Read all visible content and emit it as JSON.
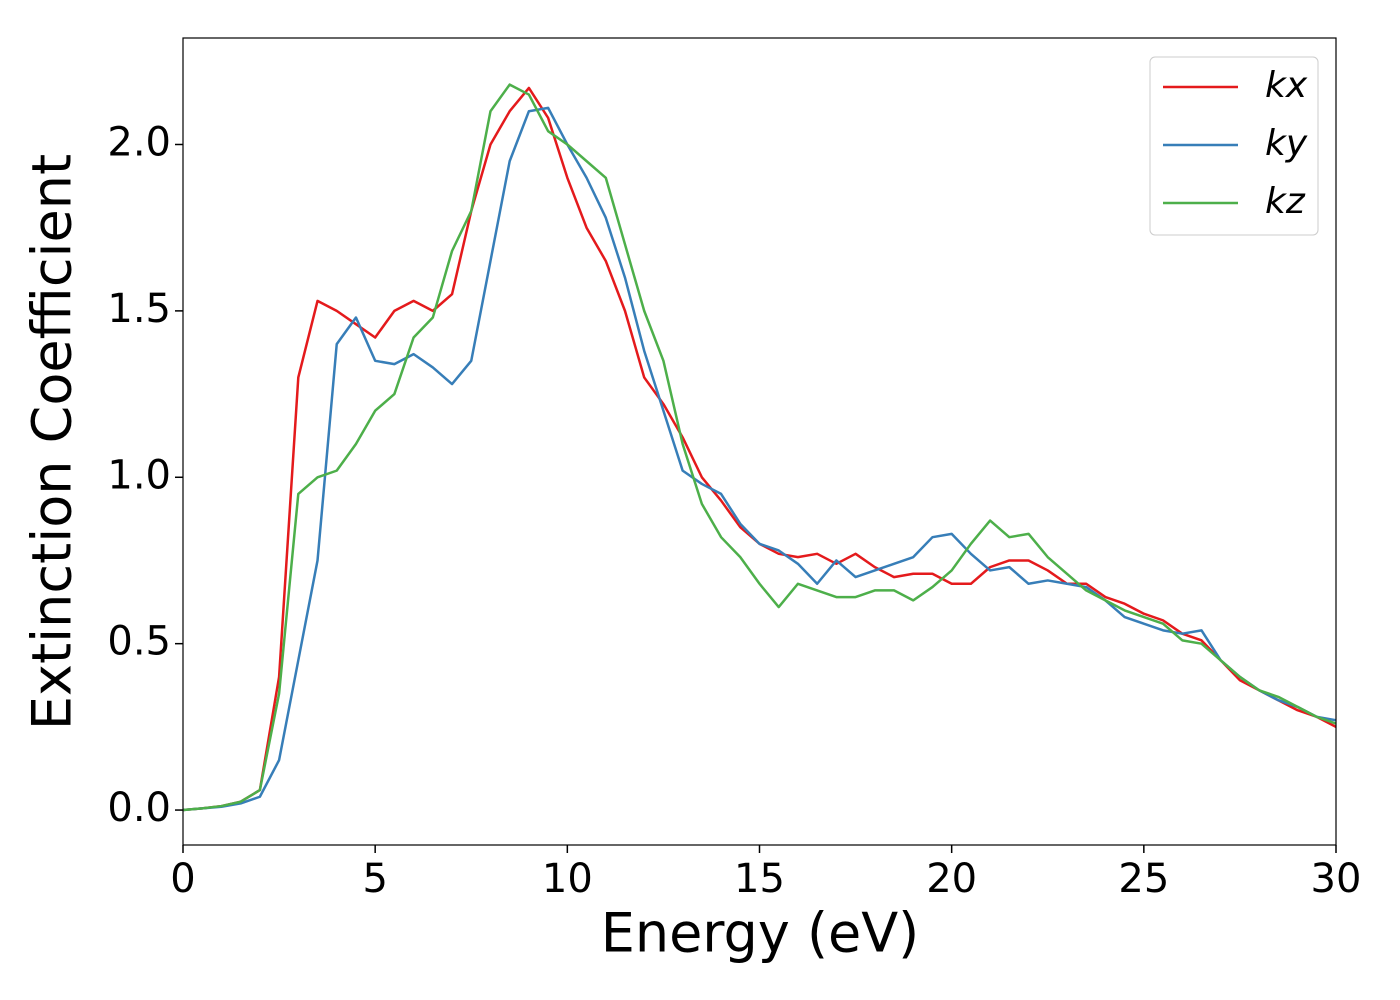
{
  "chart_data": {
    "type": "line",
    "xlabel": "Energy (eV)",
    "ylabel": "Extinction Coefficient",
    "x": [
      0,
      0.5,
      1,
      1.5,
      2,
      2.5,
      3,
      3.5,
      4,
      4.5,
      5,
      5.5,
      6,
      6.5,
      7,
      7.5,
      8,
      8.5,
      9,
      9.5,
      10,
      10.5,
      11,
      11.5,
      12,
      12.5,
      13,
      13.5,
      14,
      14.5,
      15,
      15.5,
      16,
      16.5,
      17,
      17.5,
      18,
      18.5,
      19,
      19.5,
      20,
      20.5,
      21,
      21.5,
      22,
      22.5,
      23,
      23.5,
      24,
      24.5,
      25,
      25.5,
      26,
      26.5,
      27,
      27.5,
      28,
      28.5,
      29,
      29.5,
      30
    ],
    "series": [
      {
        "name": "kx",
        "color": "#e41a1c",
        "values": [
          0,
          0.005,
          0.012,
          0.025,
          0.06,
          0.4,
          1.3,
          1.53,
          1.5,
          1.46,
          1.42,
          1.5,
          1.53,
          1.5,
          1.55,
          1.8,
          2.0,
          2.1,
          2.17,
          2.08,
          1.9,
          1.75,
          1.65,
          1.5,
          1.3,
          1.22,
          1.12,
          1.0,
          0.93,
          0.85,
          0.8,
          0.77,
          0.76,
          0.77,
          0.74,
          0.77,
          0.73,
          0.7,
          0.71,
          0.71,
          0.68,
          0.68,
          0.73,
          0.75,
          0.75,
          0.72,
          0.68,
          0.68,
          0.64,
          0.62,
          0.59,
          0.57,
          0.53,
          0.51,
          0.45,
          0.39,
          0.36,
          0.33,
          0.3,
          0.28,
          0.25
        ]
      },
      {
        "name": "ky",
        "color": "#377eb8",
        "values": [
          0,
          0.005,
          0.01,
          0.02,
          0.04,
          0.15,
          0.45,
          0.75,
          1.4,
          1.48,
          1.35,
          1.34,
          1.37,
          1.33,
          1.28,
          1.35,
          1.65,
          1.95,
          2.1,
          2.11,
          2.0,
          1.9,
          1.78,
          1.6,
          1.38,
          1.2,
          1.02,
          0.98,
          0.95,
          0.86,
          0.8,
          0.78,
          0.74,
          0.68,
          0.75,
          0.7,
          0.72,
          0.74,
          0.76,
          0.82,
          0.83,
          0.77,
          0.72,
          0.73,
          0.68,
          0.69,
          0.68,
          0.67,
          0.63,
          0.58,
          0.56,
          0.54,
          0.53,
          0.54,
          0.45,
          0.4,
          0.36,
          0.33,
          0.31,
          0.28,
          0.27
        ]
      },
      {
        "name": "kz",
        "color": "#4daf4a",
        "values": [
          0,
          0.005,
          0.012,
          0.025,
          0.06,
          0.35,
          0.95,
          1.0,
          1.02,
          1.1,
          1.2,
          1.25,
          1.42,
          1.48,
          1.68,
          1.8,
          2.1,
          2.18,
          2.15,
          2.04,
          2.0,
          1.95,
          1.9,
          1.7,
          1.5,
          1.35,
          1.1,
          0.92,
          0.82,
          0.76,
          0.68,
          0.61,
          0.68,
          0.66,
          0.64,
          0.64,
          0.66,
          0.66,
          0.63,
          0.67,
          0.72,
          0.8,
          0.87,
          0.82,
          0.83,
          0.76,
          0.71,
          0.66,
          0.63,
          0.6,
          0.58,
          0.56,
          0.51,
          0.5,
          0.45,
          0.4,
          0.36,
          0.34,
          0.31,
          0.28,
          0.26
        ]
      }
    ],
    "xlim": [
      0,
      30
    ],
    "xticks": [
      0,
      5,
      10,
      15,
      20,
      25,
      30
    ],
    "ylim": [
      -0.105,
      2.32
    ],
    "yticks": [
      {
        "value": 0,
        "label": "0.0"
      },
      0.5,
      {
        "value": 1,
        "label": "1.0"
      },
      1.5,
      {
        "value": 2,
        "label": "2.0"
      }
    ],
    "grid": false,
    "legend": "upper right"
  }
}
